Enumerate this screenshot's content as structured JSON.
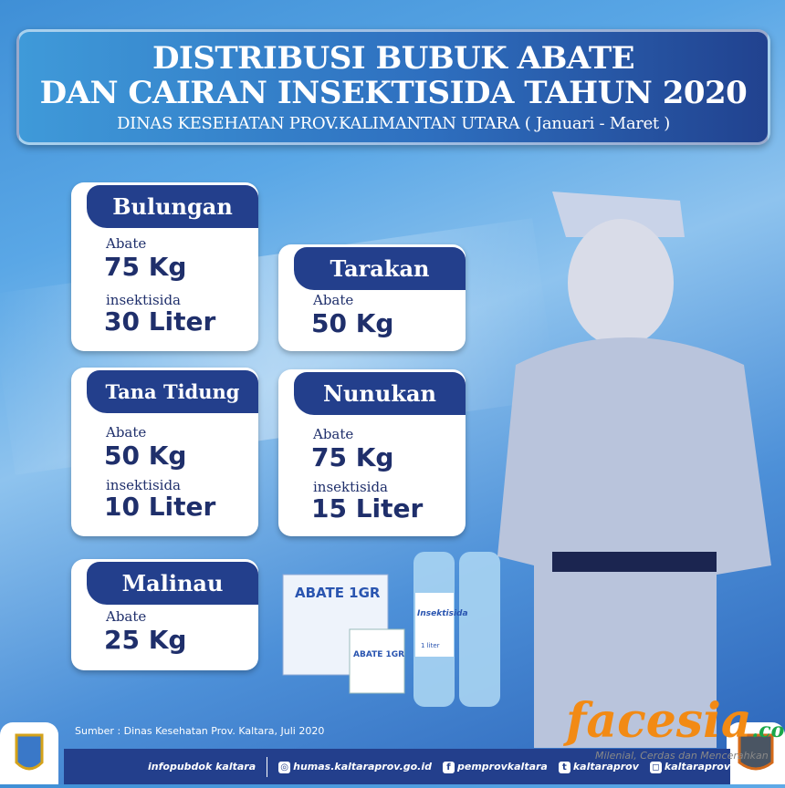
{
  "title": {
    "line1": "DISTRIBUSI BUBUK ABATE",
    "line2": "DAN CAIRAN INSEKTISIDA TAHUN 2020",
    "subtitle": "DINAS KESEHATAN PROV.KALIMANTAN UTARA ( Januari - Maret )"
  },
  "regions": [
    {
      "name": "Bulungan",
      "abate_label": "Abate",
      "abate": "75 Kg",
      "ins_label": "insektisida",
      "insektisida": "30 Liter"
    },
    {
      "name": "Tarakan",
      "abate_label": "Abate",
      "abate": "50 Kg"
    },
    {
      "name": "Tana Tidung",
      "abate_label": "Abate",
      "abate": "50 Kg",
      "ins_label": "insektisida",
      "insektisida": "10 Liter"
    },
    {
      "name": "Nunukan",
      "abate_label": "Abate",
      "abate": "75 Kg",
      "ins_label": "insektisida",
      "insektisida": "15 Liter"
    },
    {
      "name": "Malinau",
      "abate_label": "Abate",
      "abate": "25 Kg"
    }
  ],
  "products": {
    "box_label": "ABATE 1GR",
    "sachet_label": "ABATE 1GR",
    "bottle_label": "Insektisida",
    "bottle_volume": "1 liter"
  },
  "source": "Sumber : Dinas Kesehatan Prov. Kaltara, Juli 2020",
  "footer": {
    "info": "infopubdok kaltara",
    "web": "humas.kaltaraprov.go.id",
    "facebook": "pemprovkaltara",
    "twitter": "kaltaraprov",
    "instagram": "kaltaraprov"
  },
  "watermark": {
    "brand": "facesia",
    "suffix": ".com",
    "tagline": "Milenial, Cerdas dan Mencerahkan"
  },
  "colors": {
    "navy": "#233f8c",
    "accent": "#3f9ad9"
  }
}
